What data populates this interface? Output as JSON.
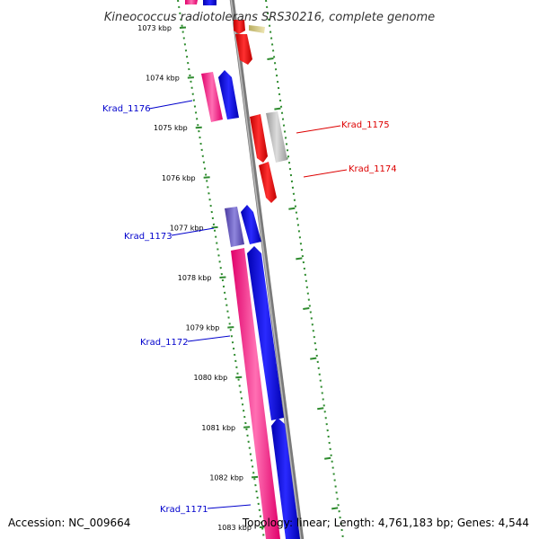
{
  "title": "Kineococcus radiotolerans SRS30216, complete genome",
  "accession": "Accession: NC_009664",
  "topology": "Topology: linear; Length: 4,761,183 bp; Genes: 4,544",
  "colors": {
    "dot_scale": "#2e8b2e",
    "axis": "#888888",
    "forward_label": "#0000cc",
    "reverse_label": "#dd0000",
    "forward_gene": "#0000ee",
    "forward_cds": "#ff2a8a",
    "reverse_gene": "#ee0000",
    "reverse_cds": "#b3b3b3"
  },
  "ticks": [
    {
      "label": "1073 kbp"
    },
    {
      "label": "1074 kbp"
    },
    {
      "label": "1075 kbp"
    },
    {
      "label": "1076 kbp"
    },
    {
      "label": "1077 kbp"
    },
    {
      "label": "1078 kbp"
    },
    {
      "label": "1079 kbp"
    },
    {
      "label": "1080 kbp"
    },
    {
      "label": "1081 kbp"
    },
    {
      "label": "1082 kbp"
    },
    {
      "label": "1083 kbp"
    }
  ],
  "genes": [
    {
      "label": "Krad_1176",
      "strand": "forward"
    },
    {
      "label": "Krad_1175",
      "strand": "reverse"
    },
    {
      "label": "Krad_1174",
      "strand": "reverse"
    },
    {
      "label": "Krad_1173",
      "strand": "forward"
    },
    {
      "label": "Krad_1172",
      "strand": "forward"
    },
    {
      "label": "Krad_1171",
      "strand": "forward"
    }
  ]
}
